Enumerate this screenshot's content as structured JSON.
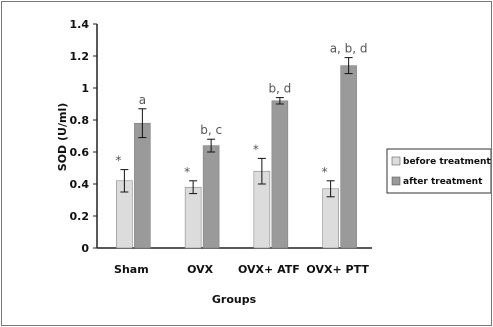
{
  "chart_data": {
    "type": "bar",
    "title": "",
    "xlabel": "Groups",
    "ylabel": "SOD (U/ml)",
    "ylim": [
      0,
      1.4
    ],
    "yticks": [
      0,
      0.2,
      0.4,
      0.6,
      0.8,
      1,
      1.2,
      1.4
    ],
    "ytick_labels": [
      "0",
      "0.2",
      "0.4",
      "0.6",
      "0.8",
      "1",
      "1.2",
      "1.4"
    ],
    "categories": [
      "Sham",
      "OVX",
      "OVX+ ATF",
      "OVX+ PTT"
    ],
    "series": [
      {
        "name": "before treatment",
        "color": "#dcdcdc",
        "values": [
          0.42,
          0.38,
          0.48,
          0.37
        ],
        "errors": [
          0.07,
          0.04,
          0.08,
          0.05
        ],
        "annotations": [
          "*",
          "*",
          "*",
          "*"
        ]
      },
      {
        "name": "after treatment",
        "color": "#9a9a9a",
        "values": [
          0.78,
          0.64,
          0.92,
          1.14
        ],
        "errors": [
          0.09,
          0.04,
          0.02,
          0.05
        ],
        "annotations": [
          "a",
          "b, c",
          "b, d",
          "a, b, d"
        ]
      }
    ],
    "grid": false,
    "legend_position": "right"
  }
}
